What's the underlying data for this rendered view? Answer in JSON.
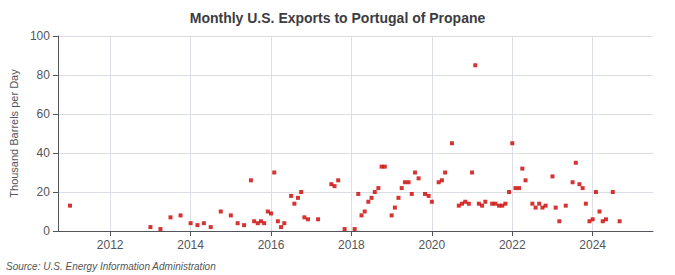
{
  "chart_data": {
    "type": "scatter",
    "title": "Monthly U.S. Exports to Portugal of Propane",
    "ylabel": "Thousand Barrels per Day",
    "annotations": [
      "Source: U.S. Energy Information Administration"
    ],
    "color": "#cc0000",
    "marker": "square",
    "grid": true,
    "xlim": [
      2010.7,
      2025.5
    ],
    "xticks": [
      2012,
      2014,
      2016,
      2018,
      2020,
      2022,
      2024
    ],
    "ylim": [
      0,
      100
    ],
    "yticks": [
      0,
      20,
      40,
      60,
      80,
      100
    ],
    "x": [
      2011.0,
      2013.0,
      2013.25,
      2013.5,
      2013.75,
      2014.0,
      2014.17,
      2014.33,
      2014.5,
      2014.75,
      2015.0,
      2015.17,
      2015.33,
      2015.5,
      2015.58,
      2015.67,
      2015.75,
      2015.83,
      2015.92,
      2016.0,
      2016.08,
      2016.17,
      2016.25,
      2016.33,
      2016.5,
      2016.58,
      2016.67,
      2016.75,
      2016.83,
      2016.92,
      2017.17,
      2017.5,
      2017.58,
      2017.67,
      2017.83,
      2018.08,
      2018.17,
      2018.25,
      2018.33,
      2018.42,
      2018.5,
      2018.58,
      2018.67,
      2018.75,
      2018.83,
      2019.0,
      2019.08,
      2019.17,
      2019.25,
      2019.33,
      2019.42,
      2019.5,
      2019.58,
      2019.67,
      2019.83,
      2019.92,
      2020.0,
      2020.17,
      2020.25,
      2020.33,
      2020.5,
      2020.67,
      2020.75,
      2020.83,
      2020.92,
      2021.0,
      2021.08,
      2021.17,
      2021.25,
      2021.33,
      2021.5,
      2021.58,
      2021.67,
      2021.75,
      2021.83,
      2021.92,
      2022.0,
      2022.08,
      2022.17,
      2022.25,
      2022.33,
      2022.5,
      2022.58,
      2022.67,
      2022.75,
      2022.83,
      2023.0,
      2023.08,
      2023.17,
      2023.33,
      2023.5,
      2023.58,
      2023.67,
      2023.75,
      2023.83,
      2023.92,
      2024.0,
      2024.08,
      2024.17,
      2024.25,
      2024.33,
      2024.5,
      2024.67
    ],
    "values": [
      13,
      2,
      1,
      7,
      8,
      4,
      3,
      4,
      2,
      10,
      8,
      4,
      3,
      26,
      5,
      4,
      5,
      4,
      10,
      9,
      30,
      5,
      2,
      4,
      18,
      14,
      17,
      20,
      7,
      6,
      6,
      24,
      23,
      26,
      1,
      1,
      19,
      8,
      10,
      15,
      17,
      20,
      22,
      33,
      33,
      8,
      12,
      17,
      22,
      25,
      25,
      19,
      30,
      27,
      19,
      18,
      15,
      25,
      26,
      30,
      45,
      13,
      14,
      15,
      14,
      30,
      85,
      14,
      13,
      15,
      14,
      14,
      13,
      13,
      14,
      20,
      45,
      22,
      22,
      32,
      26,
      14,
      12,
      14,
      12,
      13,
      28,
      12,
      5,
      13,
      25,
      35,
      24,
      22,
      14,
      5,
      6,
      20,
      10,
      5,
      6,
      20,
      5
    ]
  }
}
